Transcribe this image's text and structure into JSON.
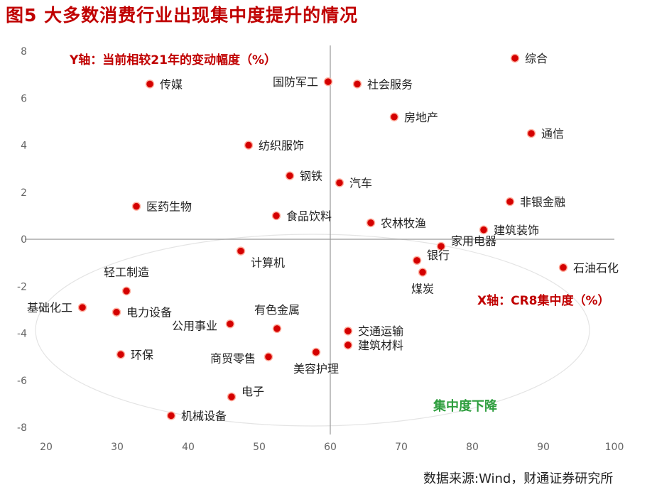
{
  "figure": {
    "title": "图5  大多数消费行业出现集中度提升的情况",
    "source": "数据来源:Wind，财通证券研究所"
  },
  "chart_data": {
    "type": "scatter",
    "title": "图5  大多数消费行业出现集中度提升的情况",
    "xlabel": "X轴：CR8集中度（%）",
    "ylabel": "Y轴：当前相较21年的变动幅度（%）",
    "xlim": [
      20,
      100
    ],
    "ylim": [
      -8,
      8
    ],
    "xticks": [
      "20",
      "30",
      "40",
      "50",
      "60",
      "70",
      "80",
      "90",
      "100"
    ],
    "yticks": [
      "8",
      "6",
      "4",
      "2",
      "0",
      "-2",
      "-4",
      "-6",
      "-8"
    ],
    "crosshair": {
      "x": 60,
      "y": 0
    },
    "annotation": "集中度下降",
    "point_color": "#d40000",
    "points": [
      {
        "name": "综合",
        "x": 86.0,
        "y": 7.7
      },
      {
        "name": "国防军工",
        "x": 59.7,
        "y": 6.7
      },
      {
        "name": "社会服务",
        "x": 63.8,
        "y": 6.6
      },
      {
        "name": "传媒",
        "x": 34.6,
        "y": 6.6
      },
      {
        "name": "房地产",
        "x": 69.0,
        "y": 5.2
      },
      {
        "name": "通信",
        "x": 88.3,
        "y": 4.5
      },
      {
        "name": "纺织服饰",
        "x": 48.5,
        "y": 4.0
      },
      {
        "name": "钢铁",
        "x": 54.3,
        "y": 2.7
      },
      {
        "name": "汽车",
        "x": 61.3,
        "y": 2.4
      },
      {
        "name": "医药生物",
        "x": 32.7,
        "y": 1.4
      },
      {
        "name": "非银金融",
        "x": 85.3,
        "y": 1.6
      },
      {
        "name": "食品饮料",
        "x": 52.4,
        "y": 1.0
      },
      {
        "name": "农林牧渔",
        "x": 65.7,
        "y": 0.7
      },
      {
        "name": "建筑装饰",
        "x": 81.6,
        "y": 0.4
      },
      {
        "name": "家用电器",
        "x": 75.6,
        "y": -0.3
      },
      {
        "name": "计算机",
        "x": 47.4,
        "y": -0.5
      },
      {
        "name": "银行",
        "x": 72.2,
        "y": -0.9
      },
      {
        "name": "煤炭",
        "x": 73.0,
        "y": -1.4
      },
      {
        "name": "石油石化",
        "x": 92.8,
        "y": -1.2
      },
      {
        "name": "轻工制造",
        "x": 31.3,
        "y": -2.2
      },
      {
        "name": "基础化工",
        "x": 25.1,
        "y": -2.9
      },
      {
        "name": "电力设备",
        "x": 29.9,
        "y": -3.1
      },
      {
        "name": "公用事业",
        "x": 45.9,
        "y": -3.6
      },
      {
        "name": "有色金属",
        "x": 52.5,
        "y": -3.8
      },
      {
        "name": "交通运输",
        "x": 62.5,
        "y": -3.9
      },
      {
        "name": "建筑材料",
        "x": 62.5,
        "y": -4.5
      },
      {
        "name": "环保",
        "x": 30.5,
        "y": -4.9
      },
      {
        "name": "商贸零售",
        "x": 51.3,
        "y": -5.0
      },
      {
        "name": "美容护理",
        "x": 58.0,
        "y": -4.8
      },
      {
        "name": "电子",
        "x": 46.1,
        "y": -6.7
      },
      {
        "name": "机械设备",
        "x": 37.6,
        "y": -7.5
      }
    ]
  }
}
